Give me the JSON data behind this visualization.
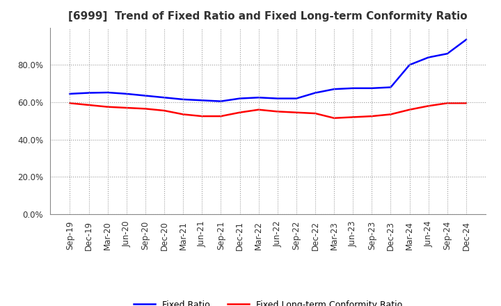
{
  "title": "[6999]  Trend of Fixed Ratio and Fixed Long-term Conformity Ratio",
  "x_labels": [
    "Sep-19",
    "Dec-19",
    "Mar-20",
    "Jun-20",
    "Sep-20",
    "Dec-20",
    "Mar-21",
    "Jun-21",
    "Sep-21",
    "Dec-21",
    "Mar-22",
    "Jun-22",
    "Sep-22",
    "Dec-22",
    "Mar-23",
    "Jun-23",
    "Sep-23",
    "Dec-23",
    "Mar-24",
    "Jun-24",
    "Sep-24",
    "Dec-24"
  ],
  "fixed_ratio": [
    64.5,
    65.0,
    65.2,
    64.5,
    63.5,
    62.5,
    61.5,
    61.0,
    60.5,
    62.0,
    62.5,
    62.0,
    62.0,
    65.0,
    67.0,
    67.5,
    67.5,
    68.0,
    80.0,
    84.0,
    86.0,
    93.5
  ],
  "fixed_lt_ratio": [
    59.5,
    58.5,
    57.5,
    57.0,
    56.5,
    55.5,
    53.5,
    52.5,
    52.5,
    54.5,
    56.0,
    55.0,
    54.5,
    54.0,
    51.5,
    52.0,
    52.5,
    53.5,
    56.0,
    58.0,
    59.5,
    59.5
  ],
  "fixed_ratio_color": "#0000FF",
  "fixed_lt_ratio_color": "#FF0000",
  "ylim": [
    0,
    100
  ],
  "yticks": [
    0,
    20,
    40,
    60,
    80
  ],
  "background_color": "#FFFFFF",
  "plot_bg_color": "#FFFFFF",
  "grid_color": "#999999",
  "line_width": 1.8,
  "legend_fixed_ratio": "Fixed Ratio",
  "legend_fixed_lt_ratio": "Fixed Long-term Conformity Ratio",
  "title_fontsize": 11,
  "tick_fontsize": 8.5,
  "legend_fontsize": 9
}
